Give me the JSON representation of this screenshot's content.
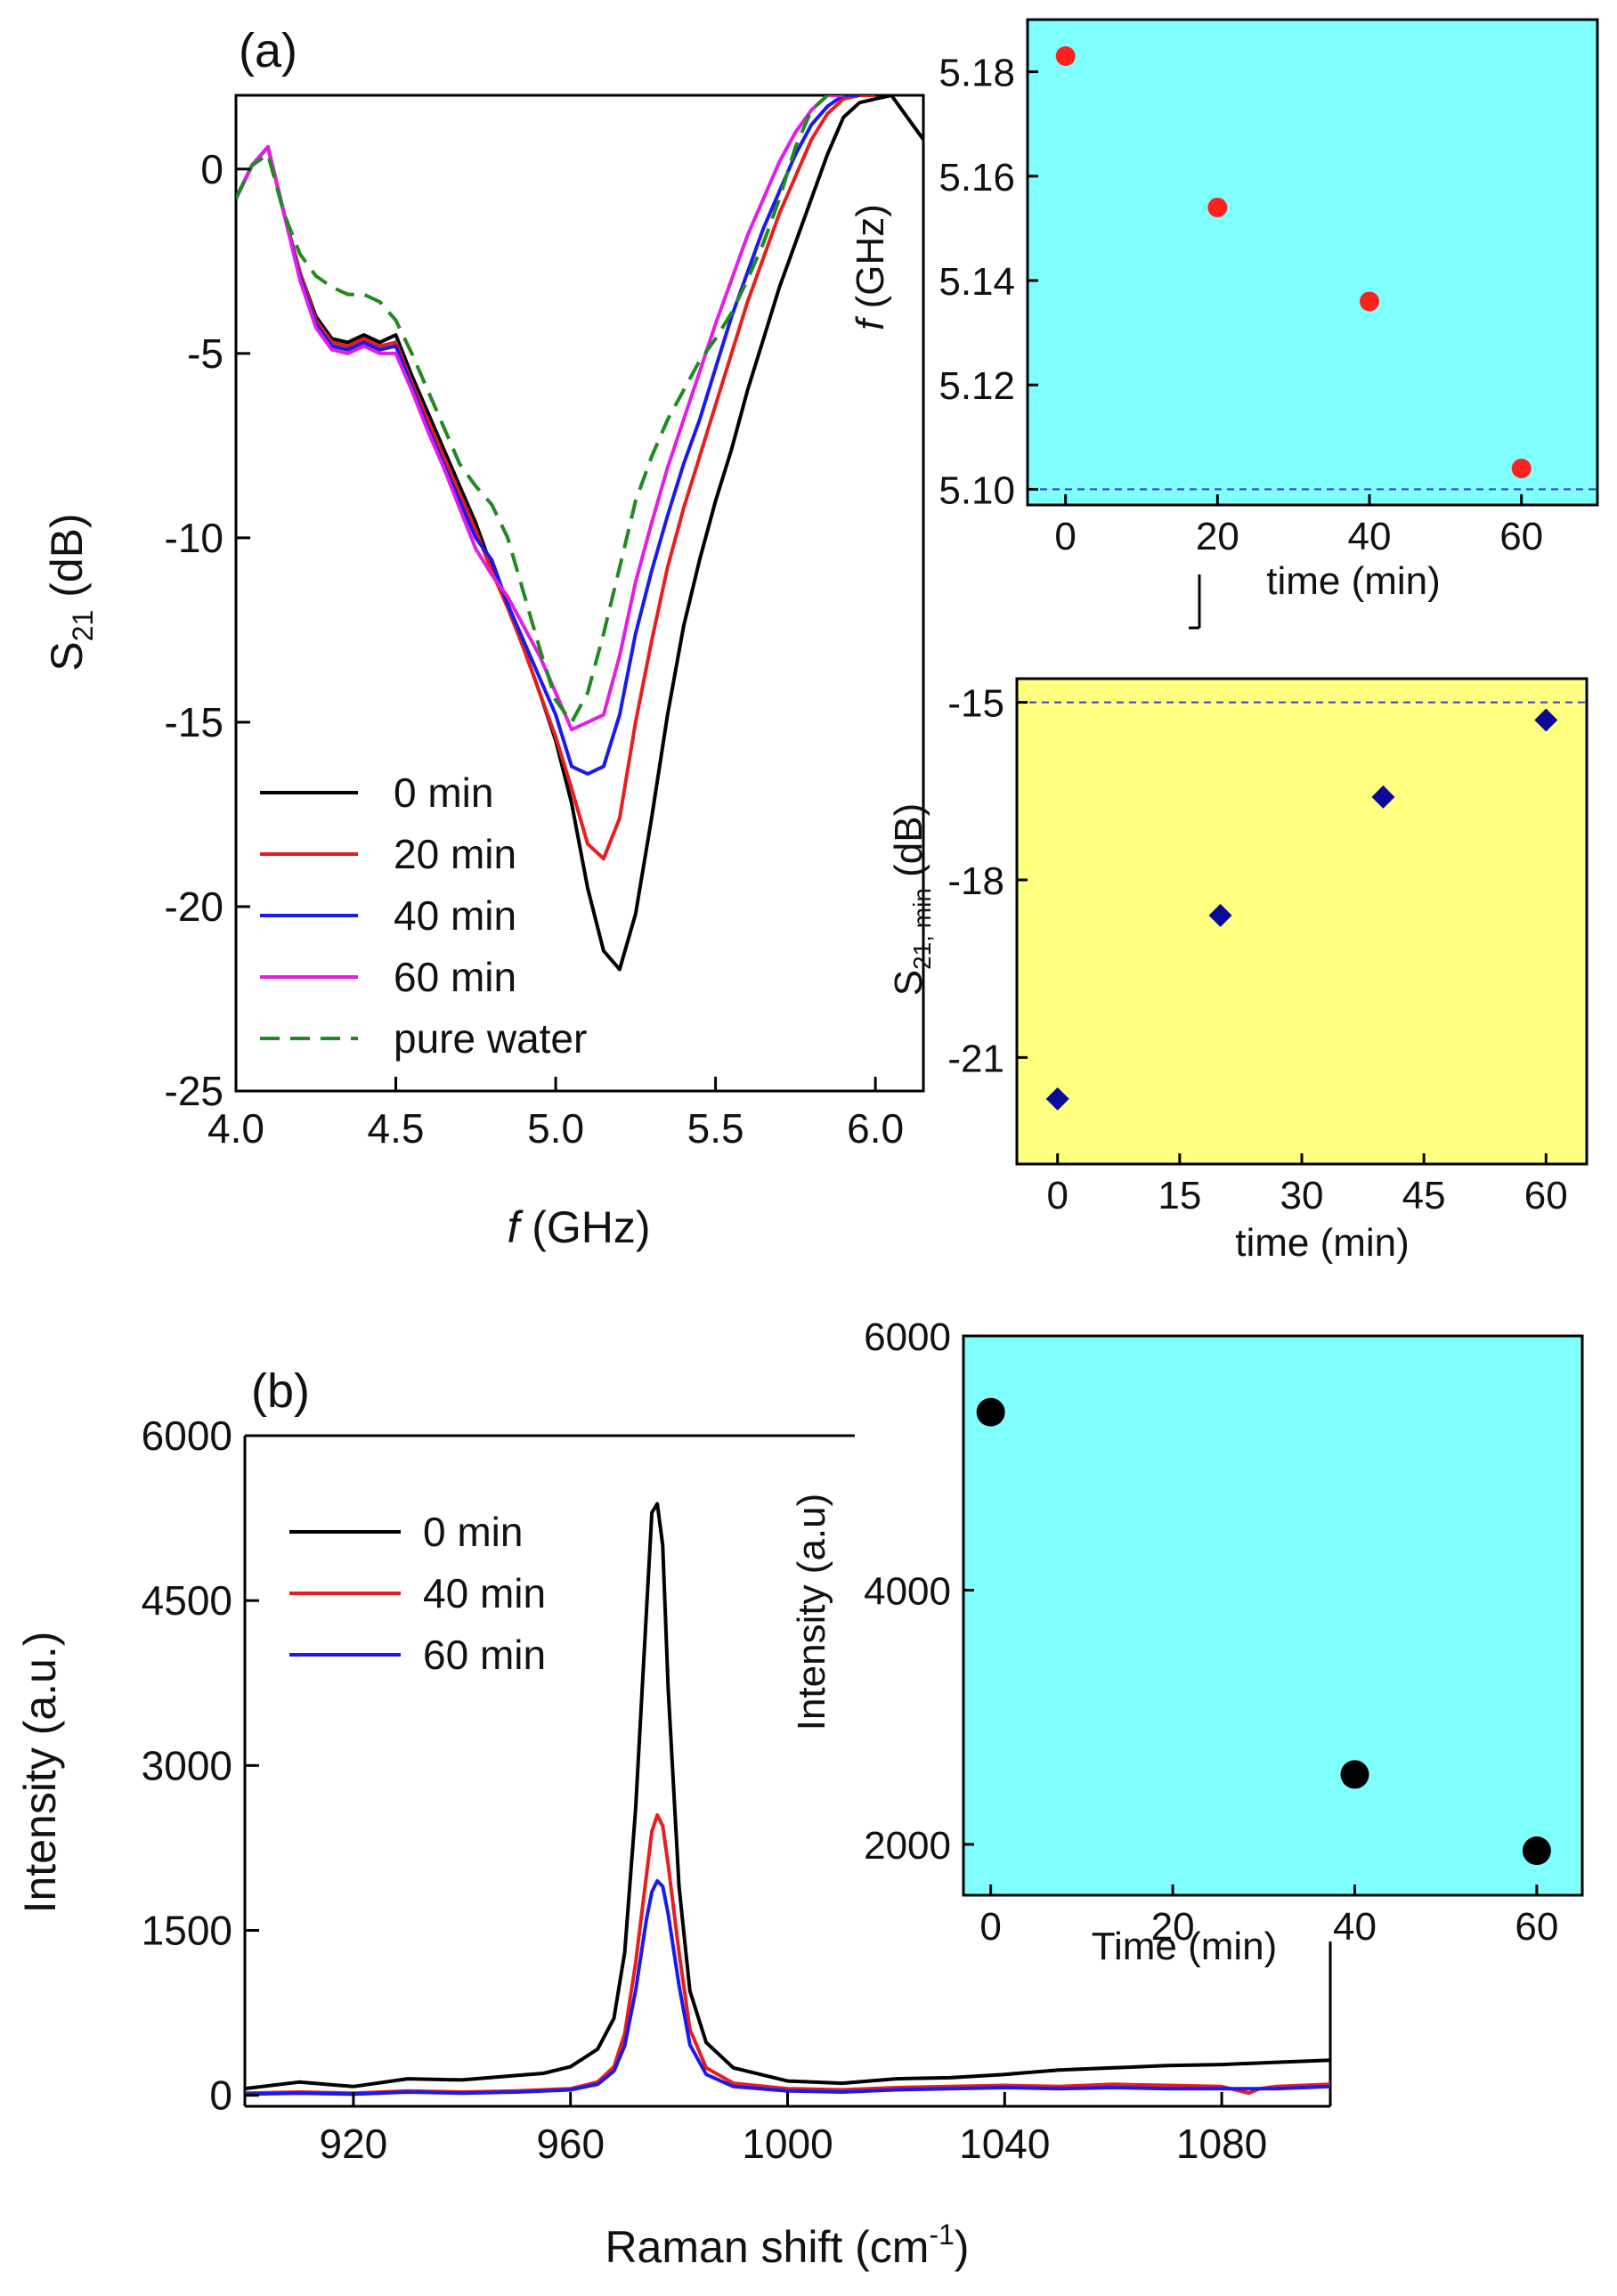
{
  "chart_data": [
    {
      "id": "a_main",
      "type": "line",
      "panel_label": "(a)",
      "xlabel_italic": "f",
      "xlabel": "(GHz)",
      "ylabel_main": "S",
      "ylabel_sub": "21",
      "ylabel_unit": "(dB)",
      "xlim": [
        4.0,
        6.15
      ],
      "ylim": [
        -25,
        2
      ],
      "xticks": [
        4.0,
        4.5,
        5.0,
        5.5,
        6.0
      ],
      "xtick_labels": [
        "4.0",
        "4.5",
        "5.0",
        "5.5",
        "6.0"
      ],
      "yticks": [
        0,
        -5,
        -10,
        -15,
        -20,
        -25
      ],
      "ytick_labels": [
        "0",
        "-5",
        "-10",
        "-15",
        "-20",
        "-25"
      ],
      "legend_position": "lower-left",
      "series": [
        {
          "name": "0 min",
          "color": "#000000",
          "dash": false,
          "x": [
            4.0,
            4.05,
            4.1,
            4.15,
            4.2,
            4.25,
            4.3,
            4.35,
            4.4,
            4.45,
            4.5,
            4.55,
            4.6,
            4.65,
            4.7,
            4.75,
            4.8,
            4.85,
            4.9,
            4.95,
            5.0,
            5.05,
            5.1,
            5.15,
            5.2,
            5.25,
            5.3,
            5.35,
            5.4,
            5.45,
            5.5,
            5.55,
            5.6,
            5.65,
            5.7,
            5.75,
            5.8,
            5.85,
            5.9,
            5.95,
            6.0,
            6.05,
            6.1,
            6.15
          ],
          "y": [
            -0.8,
            0.1,
            0.6,
            -1.2,
            -2.8,
            -4.0,
            -4.6,
            -4.7,
            -4.5,
            -4.7,
            -4.5,
            -5.6,
            -6.6,
            -7.6,
            -8.6,
            -9.6,
            -10.8,
            -11.8,
            -13.0,
            -14.2,
            -15.5,
            -17.2,
            -19.5,
            -21.2,
            -21.7,
            -20.2,
            -17.6,
            -14.8,
            -12.4,
            -10.6,
            -9.0,
            -7.6,
            -6.0,
            -4.6,
            -3.2,
            -2.0,
            -0.8,
            0.4,
            1.4,
            1.8,
            1.9,
            2.0,
            1.4,
            0.8
          ]
        },
        {
          "name": "20 min",
          "color": "#e81e1e",
          "dash": false,
          "x": [
            4.0,
            4.05,
            4.1,
            4.15,
            4.2,
            4.25,
            4.3,
            4.35,
            4.4,
            4.45,
            4.5,
            4.55,
            4.6,
            4.65,
            4.7,
            4.75,
            4.8,
            4.85,
            4.9,
            4.95,
            5.0,
            5.05,
            5.1,
            5.15,
            5.2,
            5.25,
            5.3,
            5.35,
            5.4,
            5.45,
            5.5,
            5.55,
            5.6,
            5.65,
            5.7,
            5.75,
            5.8,
            5.85,
            5.9,
            5.95,
            6.0
          ],
          "y": [
            -0.8,
            0.1,
            0.6,
            -1.2,
            -2.8,
            -4.1,
            -4.7,
            -4.8,
            -4.6,
            -4.8,
            -4.7,
            -5.8,
            -6.8,
            -7.8,
            -8.8,
            -9.8,
            -10.9,
            -11.9,
            -13.0,
            -14.2,
            -15.4,
            -16.8,
            -18.3,
            -18.7,
            -17.6,
            -15.0,
            -12.8,
            -10.8,
            -9.2,
            -7.8,
            -6.4,
            -5.0,
            -3.6,
            -2.4,
            -1.2,
            -0.2,
            0.8,
            1.5,
            1.9,
            2.0,
            2.0
          ]
        },
        {
          "name": "40 min",
          "color": "#1a1aee",
          "dash": false,
          "x": [
            4.0,
            4.05,
            4.1,
            4.15,
            4.2,
            4.25,
            4.3,
            4.35,
            4.4,
            4.45,
            4.5,
            4.55,
            4.6,
            4.65,
            4.7,
            4.75,
            4.8,
            4.85,
            4.9,
            4.95,
            5.0,
            5.05,
            5.1,
            5.15,
            5.2,
            5.25,
            5.3,
            5.35,
            5.4,
            5.45,
            5.5,
            5.55,
            5.6,
            5.65,
            5.7,
            5.75,
            5.8,
            5.85,
            5.9,
            5.95
          ],
          "y": [
            -0.8,
            0.1,
            0.6,
            -1.2,
            -2.9,
            -4.2,
            -4.8,
            -4.9,
            -4.7,
            -4.9,
            -4.8,
            -5.9,
            -7.0,
            -8.0,
            -9.0,
            -10.0,
            -10.6,
            -11.8,
            -12.8,
            -13.8,
            -14.8,
            -16.2,
            -16.4,
            -16.2,
            -14.8,
            -12.6,
            -10.9,
            -9.4,
            -8.0,
            -6.8,
            -5.4,
            -4.0,
            -2.8,
            -1.6,
            -0.6,
            0.4,
            1.2,
            1.7,
            2.0,
            2.0
          ]
        },
        {
          "name": "60 min",
          "color": "#e21ee2",
          "dash": false,
          "x": [
            4.0,
            4.05,
            4.1,
            4.15,
            4.2,
            4.25,
            4.3,
            4.35,
            4.4,
            4.45,
            4.5,
            4.55,
            4.6,
            4.65,
            4.7,
            4.75,
            4.8,
            4.85,
            4.9,
            4.95,
            5.0,
            5.05,
            5.1,
            5.15,
            5.2,
            5.25,
            5.3,
            5.35,
            5.4,
            5.45,
            5.5,
            5.55,
            5.6,
            5.65,
            5.7,
            5.75,
            5.8,
            5.85,
            5.9
          ],
          "y": [
            -0.8,
            0.1,
            0.6,
            -1.2,
            -3.0,
            -4.3,
            -4.9,
            -5.0,
            -4.8,
            -5.0,
            -5.0,
            -6.0,
            -7.1,
            -8.1,
            -9.2,
            -10.3,
            -11.0,
            -11.6,
            -12.4,
            -13.2,
            -14.2,
            -15.2,
            -15.0,
            -14.8,
            -13.2,
            -11.2,
            -9.6,
            -8.1,
            -6.8,
            -5.5,
            -4.2,
            -3.0,
            -1.8,
            -0.8,
            0.2,
            1.0,
            1.6,
            2.0,
            2.0
          ]
        },
        {
          "name": "pure water",
          "color": "#1f8a1f",
          "dash": true,
          "x": [
            4.0,
            4.05,
            4.1,
            4.15,
            4.2,
            4.25,
            4.3,
            4.35,
            4.4,
            4.45,
            4.5,
            4.55,
            4.6,
            4.65,
            4.7,
            4.75,
            4.8,
            4.85,
            4.9,
            4.95,
            5.0,
            5.05,
            5.1,
            5.15,
            5.2,
            5.25,
            5.3,
            5.35,
            5.4,
            5.45,
            5.5,
            5.55,
            5.6,
            5.65,
            5.7,
            5.75,
            5.8,
            5.85
          ],
          "y": [
            -0.8,
            0.1,
            0.4,
            -1.2,
            -2.3,
            -2.9,
            -3.2,
            -3.4,
            -3.4,
            -3.6,
            -4.1,
            -5.0,
            -6.0,
            -7.0,
            -8.0,
            -8.6,
            -9.1,
            -10.0,
            -11.5,
            -13.0,
            -14.4,
            -15.0,
            -14.2,
            -12.6,
            -10.8,
            -9.0,
            -7.8,
            -6.8,
            -6.0,
            -5.2,
            -4.6,
            -3.9,
            -3.0,
            -2.0,
            -0.8,
            0.6,
            1.6,
            2.0
          ]
        }
      ]
    },
    {
      "id": "a_inset_f",
      "type": "scatter",
      "xlabel": "time (min)",
      "ylabel_italic": "f",
      "ylabel": "(GHz)",
      "xlim": [
        -5,
        70
      ],
      "ylim": [
        5.097,
        5.19
      ],
      "xticks": [
        0,
        20,
        40,
        60
      ],
      "xtick_labels": [
        "0",
        "20",
        "40",
        "60"
      ],
      "yticks": [
        5.1,
        5.12,
        5.14,
        5.16,
        5.18
      ],
      "ytick_labels": [
        "5.10",
        "5.12",
        "5.14",
        "5.16",
        "5.18"
      ],
      "reference_line": 5.1,
      "background": "#80ffff",
      "marker": "circle",
      "marker_color": "#ff2020",
      "x": [
        0,
        20,
        40,
        60
      ],
      "y": [
        5.183,
        5.154,
        5.136,
        5.104
      ]
    },
    {
      "id": "a_inset_s21",
      "type": "scatter",
      "xlabel": "time (min)",
      "ylabel_main": "S",
      "ylabel_sub": "21, min",
      "ylabel_unit": "(dB)",
      "xlim": [
        -5,
        65
      ],
      "ylim": [
        -22.8,
        -14.6
      ],
      "xticks": [
        0,
        15,
        30,
        45,
        60
      ],
      "xtick_labels": [
        "0",
        "15",
        "30",
        "45",
        "60"
      ],
      "yticks": [
        -15,
        -18,
        -21
      ],
      "ytick_labels": [
        "-15",
        "-18",
        "-21"
      ],
      "reference_line": -15,
      "background": "#ffff80",
      "marker": "diamond",
      "marker_color": "#0a0a96",
      "x": [
        0,
        20,
        40,
        60
      ],
      "y": [
        -21.7,
        -18.6,
        -16.6,
        -15.3
      ]
    },
    {
      "id": "b_main",
      "type": "line",
      "panel_label": "(b)",
      "xlabel": "Raman shift (cm",
      "xlabel_sup": "-1",
      "xlabel_end": ")",
      "ylabel": "Intensity (a.u.)",
      "xlim": [
        900,
        1100
      ],
      "ylim": [
        -100,
        6000
      ],
      "xticks": [
        920,
        960,
        1000,
        1040,
        1080
      ],
      "xtick_labels": [
        "920",
        "960",
        "1000",
        "1040",
        "1080"
      ],
      "yticks": [
        0,
        1500,
        3000,
        4500,
        6000
      ],
      "ytick_labels": [
        "0",
        "1500",
        "3000",
        "4500",
        "6000"
      ],
      "legend_position": "upper-left",
      "series": [
        {
          "name": "0 min",
          "color": "#000000",
          "x": [
            900,
            910,
            920,
            930,
            940,
            950,
            955,
            960,
            965,
            968,
            970,
            972,
            974,
            975,
            976,
            977,
            978,
            980,
            982,
            985,
            990,
            1000,
            1010,
            1020,
            1030,
            1040,
            1050,
            1060,
            1070,
            1080,
            1090,
            1100
          ],
          "y": [
            60,
            120,
            80,
            150,
            140,
            180,
            200,
            260,
            420,
            700,
            1300,
            2600,
            4400,
            5300,
            5380,
            5000,
            3700,
            1900,
            950,
            480,
            250,
            130,
            110,
            150,
            160,
            190,
            230,
            250,
            270,
            280,
            300,
            320
          ]
        },
        {
          "name": "40 min",
          "color": "#e81e1e",
          "x": [
            900,
            910,
            920,
            930,
            940,
            950,
            960,
            965,
            968,
            970,
            972,
            974,
            975,
            976,
            977,
            978,
            980,
            982,
            985,
            990,
            1000,
            1010,
            1020,
            1030,
            1040,
            1050,
            1060,
            1070,
            1080,
            1085,
            1087,
            1090,
            1100
          ],
          "y": [
            20,
            30,
            20,
            40,
            30,
            40,
            60,
            120,
            260,
            560,
            1200,
            2000,
            2400,
            2550,
            2450,
            2100,
            1300,
            600,
            250,
            110,
            60,
            50,
            70,
            80,
            90,
            80,
            100,
            90,
            80,
            20,
            60,
            80,
            100
          ]
        },
        {
          "name": "60 min",
          "color": "#1a1aee",
          "x": [
            900,
            910,
            920,
            930,
            940,
            950,
            960,
            965,
            968,
            970,
            972,
            974,
            975,
            976,
            977,
            978,
            980,
            982,
            985,
            990,
            1000,
            1010,
            1020,
            1030,
            1040,
            1050,
            1060,
            1070,
            1080,
            1090,
            1100
          ],
          "y": [
            10,
            20,
            10,
            30,
            20,
            30,
            50,
            100,
            220,
            450,
            950,
            1600,
            1850,
            1950,
            1900,
            1650,
            1000,
            460,
            190,
            80,
            40,
            30,
            50,
            60,
            70,
            60,
            70,
            60,
            60,
            60,
            80
          ]
        }
      ]
    },
    {
      "id": "b_inset",
      "type": "scatter",
      "xlabel": "Time (min)",
      "ylabel": "Intensity (a.u)",
      "xlim": [
        -3,
        65
      ],
      "ylim": [
        1600,
        6000
      ],
      "xticks": [
        0,
        20,
        40,
        60
      ],
      "xtick_labels": [
        "0",
        "20",
        "40",
        "60"
      ],
      "yticks": [
        2000,
        4000,
        6000
      ],
      "ytick_labels": [
        "2000",
        "4000",
        "6000"
      ],
      "background": "#80ffff",
      "marker": "circle",
      "marker_color": "#000000",
      "x": [
        0,
        40,
        60
      ],
      "y": [
        5400,
        2550,
        1950
      ]
    }
  ]
}
